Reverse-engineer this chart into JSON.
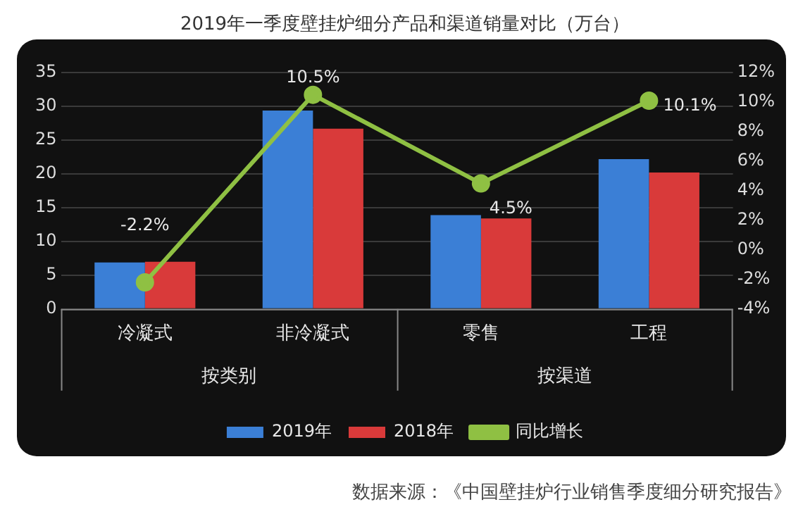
{
  "chart_data": {
    "type": "bar",
    "title": "2019年一季度壁挂炉细分产品和渠道销量对比（万台）",
    "categories": [
      "冷凝式",
      "非冷凝式",
      "零售",
      "工程"
    ],
    "series": [
      {
        "name": "2019年",
        "color": "#3b7fd6",
        "values": [
          6.9,
          29.4,
          13.9,
          22.2
        ]
      },
      {
        "name": "2018年",
        "color": "#d93a3a",
        "values": [
          7.0,
          26.7,
          13.4,
          20.2
        ]
      },
      {
        "name": "同比增长",
        "type": "line",
        "axis": "y2",
        "color": "#8fc043",
        "values": [
          -2.2,
          10.5,
          4.5,
          10.1
        ],
        "value_labels": [
          "-2.2%",
          "10.5%",
          "4.5%",
          "10.1%"
        ]
      }
    ],
    "ylim": [
      0,
      35
    ],
    "yticks": [
      0,
      5,
      10,
      15,
      20,
      25,
      30,
      35
    ],
    "y2lim": [
      -4,
      12
    ],
    "y2ticks": [
      {
        "value": -4,
        "label": "-4%"
      },
      {
        "value": -2,
        "label": "-2%"
      },
      {
        "value": 0,
        "label": "0%"
      },
      {
        "value": 2,
        "label": "2%"
      },
      {
        "value": 4,
        "label": "4%"
      },
      {
        "value": 6,
        "label": "6%"
      },
      {
        "value": 8,
        "label": "8%"
      },
      {
        "value": 10,
        "label": "10%"
      },
      {
        "value": 12,
        "label": "12%"
      }
    ],
    "grid": "y",
    "legend": "bottom",
    "marker": "circle",
    "annotations": [
      "按类别",
      "按渠道",
      "数据来源：《中国壁挂炉行业销售季度细分研究报告》"
    ]
  }
}
